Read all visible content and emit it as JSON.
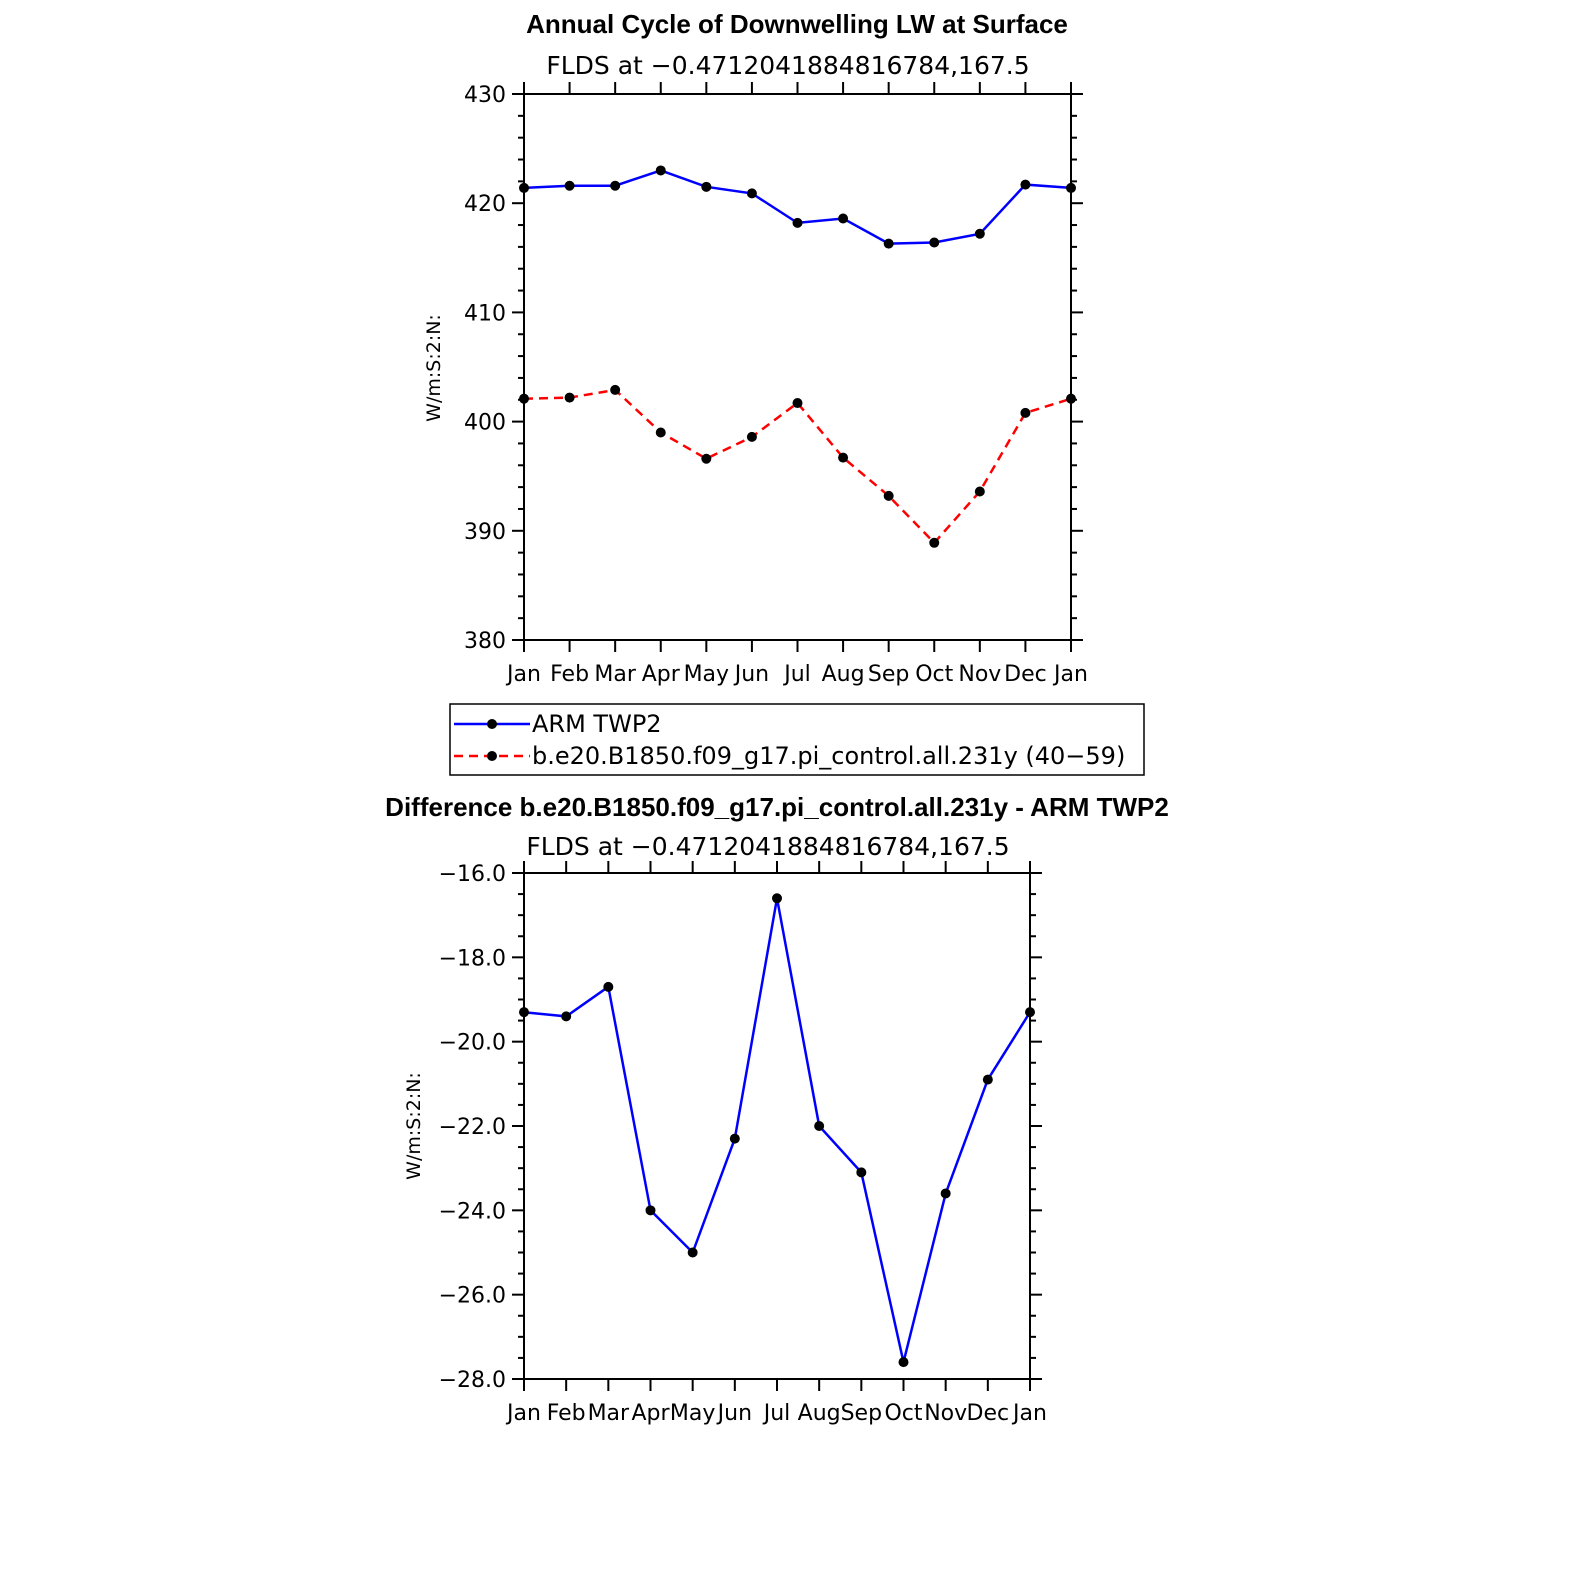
{
  "chart_data": [
    {
      "type": "line",
      "title": "Annual Cycle of Downwelling LW at Surface",
      "subtitle": "FLDS at −0.4712041884816784,167.5",
      "ylabel": "W/m:S:2:N:",
      "xlabel": "",
      "ylim": [
        380,
        430
      ],
      "yticks": [
        380,
        390,
        400,
        410,
        420,
        430
      ],
      "ytick_labels": [
        "380",
        "390",
        "400",
        "410",
        "420",
        "430"
      ],
      "categories": [
        "Jan",
        "Feb",
        "Mar",
        "Apr",
        "May",
        "Jun",
        "Jul",
        "Aug",
        "Sep",
        "Oct",
        "Nov",
        "Dec",
        "Jan"
      ],
      "grid": false,
      "legend_position": "bottom",
      "series": [
        {
          "name": "ARM TWP2",
          "color": "#0000ff",
          "dash": "solid",
          "values": [
            421.4,
            421.6,
            421.6,
            423.0,
            421.5,
            420.9,
            418.2,
            418.6,
            416.3,
            416.4,
            417.2,
            421.7,
            421.4
          ]
        },
        {
          "name": "b.e20.B1850.f09_g17.pi_control.all.231y (40−59)",
          "color": "#ff0000",
          "dash": "dashed",
          "values": [
            402.1,
            402.2,
            402.9,
            399.0,
            396.6,
            398.6,
            401.7,
            396.7,
            393.2,
            388.9,
            393.6,
            400.8,
            402.1
          ]
        }
      ]
    },
    {
      "type": "line",
      "title": "Difference b.e20.B1850.f09_g17.pi_control.all.231y - ARM TWP2",
      "subtitle": "FLDS at −0.4712041884816784,167.5",
      "ylabel": "W/m:S:2:N:",
      "xlabel": "",
      "ylim": [
        -28,
        -16
      ],
      "yticks": [
        -28,
        -26,
        -24,
        -22,
        -20,
        -18,
        -16
      ],
      "ytick_labels": [
        "−28.0",
        "−26.0",
        "−24.0",
        "−22.0",
        "−20.0",
        "−18.0",
        "−16.0"
      ],
      "categories": [
        "Jan",
        "Feb",
        "Mar",
        "Apr",
        "May",
        "Jun",
        "Jul",
        "Aug",
        "Sep",
        "Oct",
        "Nov",
        "Dec",
        "Jan"
      ],
      "grid": false,
      "series": [
        {
          "color": "#0000ff",
          "dash": "solid",
          "values": [
            -19.3,
            -19.4,
            -18.7,
            -24.0,
            -25.0,
            -22.3,
            -16.6,
            -22.0,
            -23.1,
            -27.6,
            -23.6,
            -20.9,
            -19.3
          ]
        }
      ]
    }
  ]
}
